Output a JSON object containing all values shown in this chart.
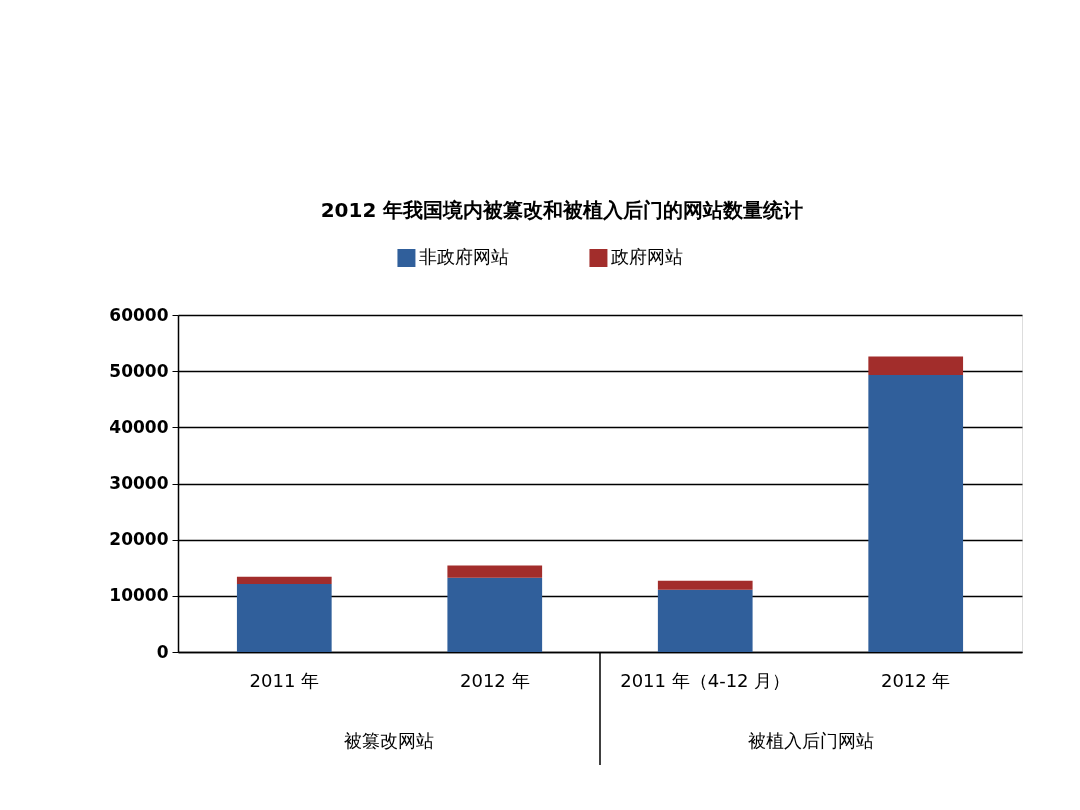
{
  "chart_data": {
    "type": "bar",
    "title": "2012 年我国境内被篡改和被植入后门的网站数量统计",
    "categories": [
      "2011 年",
      "2012 年",
      "2011 年（4-12 月）",
      "2012 年"
    ],
    "series": [
      {
        "name": "非政府网站",
        "color": "#305f9b",
        "values": [
          12100,
          13200,
          11100,
          49300
        ]
      },
      {
        "name": "政府网站",
        "color": "#a22d2b",
        "values": [
          1300,
          2200,
          1600,
          3300
        ]
      }
    ],
    "stacked": true,
    "ylim": [
      0,
      60000
    ],
    "yticks": [
      0,
      10000,
      20000,
      30000,
      40000,
      50000,
      60000
    ],
    "grid": "y",
    "legend": "top",
    "annotations": [
      "被篡改网站",
      "被植入后门网站"
    ]
  }
}
